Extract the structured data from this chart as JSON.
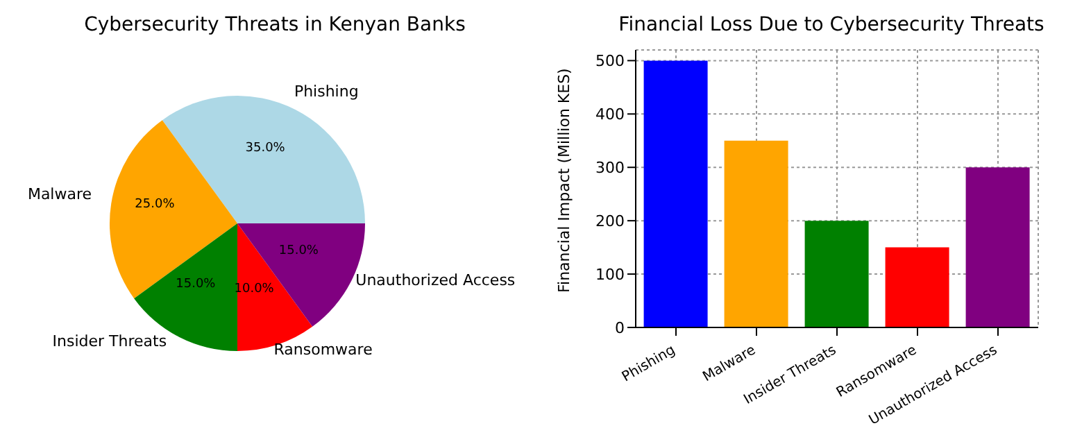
{
  "chart_data": [
    {
      "type": "pie",
      "title": "Cybersecurity Threats in Kenyan Banks",
      "categories": [
        "Phishing",
        "Malware",
        "Insider Threats",
        "Ransomware",
        "Unauthorized Access"
      ],
      "values": [
        35,
        25,
        15,
        10,
        15
      ],
      "colors": [
        "#add8e6",
        "#ffa500",
        "#008000",
        "#ff0000",
        "#800080"
      ],
      "value_labels": [
        "35.0%",
        "25.0%",
        "15.0%",
        "10.0%",
        "15.0%"
      ]
    },
    {
      "type": "bar",
      "title": "Financial Loss Due to Cybersecurity Threats",
      "ylabel": "Financial Impact (Million KES)",
      "categories": [
        "Phishing",
        "Malware",
        "Insider Threats",
        "Ransomware",
        "Unauthorized Access"
      ],
      "values": [
        500,
        350,
        200,
        150,
        300
      ],
      "colors": [
        "#0000ff",
        "#ffa500",
        "#008000",
        "#ff0000",
        "#800080"
      ],
      "ylim": [
        0,
        520
      ],
      "yticks": [
        0,
        100,
        200,
        300,
        400,
        500
      ],
      "grid": true
    }
  ]
}
